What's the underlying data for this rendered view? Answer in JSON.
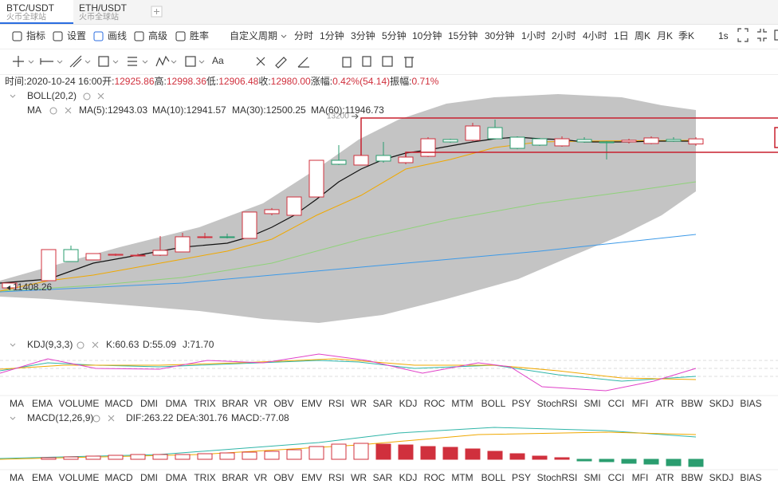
{
  "tabs": [
    {
      "pair": "BTC/USDT",
      "exchange": "火币全球站"
    },
    {
      "pair": "ETH/USDT",
      "exchange": "火币全球站"
    }
  ],
  "toolbar": {
    "tools": [
      "指标",
      "设置",
      "画线",
      "高级",
      "胜率"
    ],
    "active_tool": 2,
    "custom_period": "自定义周期",
    "periods": [
      "分时",
      "1分钟",
      "3分钟",
      "5分钟",
      "10分钟",
      "15分钟",
      "30分钟",
      "1小时",
      "2小时",
      "4小时",
      "1日",
      "周K",
      "月K",
      "季K"
    ],
    "active_period": 9,
    "speed": "1s",
    "text_tool": "Aa"
  },
  "info": [
    {
      "label": "时间:",
      "value": "2020-10-24 16:00"
    },
    {
      "label": "开:",
      "value": "12925.86"
    },
    {
      "label": "高:",
      "value": "12998.36"
    },
    {
      "label": "低:",
      "value": "12906.48"
    },
    {
      "label": "收:",
      "value": "12980.00"
    },
    {
      "label": "涨幅:",
      "value": "0.42%(54.14)"
    },
    {
      "label": "振幅:",
      "value": "0.71%"
    }
  ],
  "main": {
    "overlay": "BOLL(20,2)",
    "ma_title": "MA",
    "ma": [
      {
        "text": "MA(5):12943.03",
        "color": "#222222"
      },
      {
        "text": "MA(10):12941.57",
        "color": "#f0a800"
      },
      {
        "text": "MA(30):12500.25",
        "color": "#8fd27a"
      },
      {
        "text": "MA(60):11946.73",
        "color": "#3d9ae8"
      }
    ],
    "high_label": 13200,
    "low_label": 11408.26,
    "up_color": "#d0303d",
    "down_color": "#2a9d6f",
    "candles": [
      {
        "o": 11408,
        "h": 11459,
        "l": 11408,
        "c": 11459
      },
      {
        "o": 11484,
        "h": 11812,
        "l": 11484,
        "c": 11812
      },
      {
        "o": 11812,
        "h": 11854,
        "l": 11686,
        "c": 11686
      },
      {
        "o": 11703,
        "h": 11770,
        "l": 11703,
        "c": 11770
      },
      {
        "o": 11753,
        "h": 11770,
        "l": 11745,
        "c": 11762
      },
      {
        "o": 11753,
        "h": 11770,
        "l": 11745,
        "c": 11753
      },
      {
        "o": 11753,
        "h": 11955,
        "l": 11745,
        "c": 11804
      },
      {
        "o": 11787,
        "h": 11989,
        "l": 11787,
        "c": 11947
      },
      {
        "o": 11939,
        "h": 11989,
        "l": 11930,
        "c": 11947
      },
      {
        "o": 11947,
        "h": 11980,
        "l": 11930,
        "c": 11939
      },
      {
        "o": 11930,
        "h": 12208,
        "l": 11930,
        "c": 12208
      },
      {
        "o": 12191,
        "h": 12250,
        "l": 12174,
        "c": 12233
      },
      {
        "o": 12174,
        "h": 12367,
        "l": 12174,
        "c": 12367
      },
      {
        "o": 12367,
        "h": 12754,
        "l": 12367,
        "c": 12754
      },
      {
        "o": 12754,
        "h": 12914,
        "l": 12704,
        "c": 12712
      },
      {
        "o": 12704,
        "h": 13200,
        "l": 12704,
        "c": 12805
      },
      {
        "o": 12805,
        "h": 12948,
        "l": 12729,
        "c": 12746
      },
      {
        "o": 12729,
        "h": 12796,
        "l": 12712,
        "c": 12788
      },
      {
        "o": 12796,
        "h": 12998,
        "l": 12788,
        "c": 12981
      },
      {
        "o": 12973,
        "h": 12981,
        "l": 12939,
        "c": 12948
      },
      {
        "o": 12965,
        "h": 13150,
        "l": 12956,
        "c": 13116
      },
      {
        "o": 13099,
        "h": 13183,
        "l": 12973,
        "c": 12981
      },
      {
        "o": 12998,
        "h": 13007,
        "l": 12871,
        "c": 12880
      },
      {
        "o": 12981,
        "h": 12990,
        "l": 12906,
        "c": 12914
      },
      {
        "o": 12906,
        "h": 13007,
        "l": 12897,
        "c": 12981
      },
      {
        "o": 12973,
        "h": 12998,
        "l": 12939,
        "c": 12948
      },
      {
        "o": 12948,
        "h": 12956,
        "l": 12763,
        "c": 12939
      },
      {
        "o": 12948,
        "h": 12981,
        "l": 12931,
        "c": 12965
      },
      {
        "o": 12931,
        "h": 13007,
        "l": 12923,
        "c": 12990
      },
      {
        "o": 12973,
        "h": 12998,
        "l": 12948,
        "c": 12956
      },
      {
        "o": 12925.86,
        "h": 12998.36,
        "l": 12906.48,
        "c": 12980
      }
    ]
  },
  "kdj": {
    "title": "KDJ(9,3,3)",
    "lines": [
      {
        "text": "K:60.63",
        "color": "#2fb5a8"
      },
      {
        "text": "D:55.09",
        "color": "#f0a800"
      },
      {
        "text": "J:71.70",
        "color": "#e040c8"
      }
    ],
    "active": 14,
    "dim": 3
  },
  "macd": {
    "title": "MACD(12,26,9)",
    "lines": [
      {
        "text": "DIF:263.22",
        "color": "#2fb5a8"
      },
      {
        "text": "DEA:301.76",
        "color": "#f0a800"
      },
      {
        "text": "MACD:-77.08",
        "color": "#2a9d6f"
      }
    ],
    "active": 3,
    "dim": 14
  },
  "indicators": [
    "MA",
    "EMA",
    "VOLUME",
    "MACD",
    "DMI",
    "DMA",
    "TRIX",
    "BRAR",
    "VR",
    "OBV",
    "EMV",
    "RSI",
    "WR",
    "SAR",
    "KDJ",
    "ROC",
    "MTM",
    "BOLL",
    "PSY",
    "StochRSI",
    "SMI",
    "CCI",
    "MFI",
    "ATR",
    "BBW",
    "SKDJ",
    "BIAS"
  ]
}
